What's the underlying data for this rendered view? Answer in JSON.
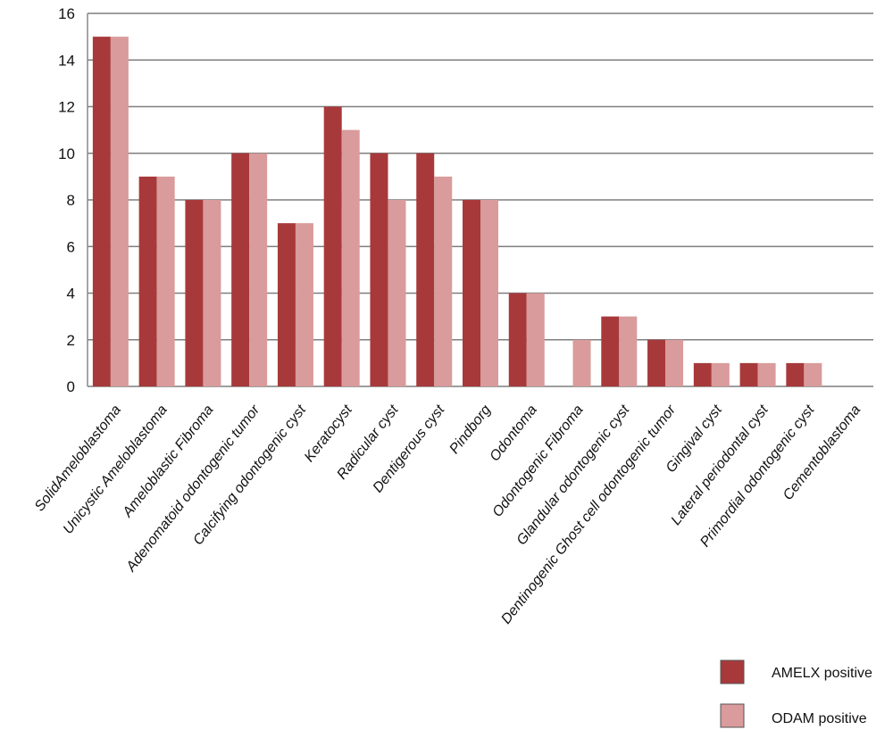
{
  "chart_data": {
    "type": "bar",
    "categories": [
      "SolidAmeloblastoma",
      "Unicystic Ameloblastoma",
      "Ameloblastic Fibroma",
      "Adenomatoid odontogenic tumor",
      "Calcifying odontogenic cyst",
      "Keratocyst",
      "Radicular cyst",
      "Dentigerous cyst",
      "Pindborg",
      "Odontoma",
      "Odontogenic Fibroma",
      "Glandular odontogenic cyst",
      "Dentinogenic Ghost cell odontogenic tumor",
      "Gingival cyst",
      "Lateral periodontal cyst",
      "Primordial odontogenic cyst",
      "Cementoblastoma"
    ],
    "series": [
      {
        "name": "AMELX positive",
        "color": "#a8393b",
        "values": [
          15,
          9,
          8,
          10,
          7,
          12,
          10,
          10,
          8,
          4,
          0,
          3,
          2,
          1,
          1,
          1,
          0
        ]
      },
      {
        "name": "ODAM positive",
        "color": "#d99b9b",
        "values": [
          15,
          9,
          8,
          10,
          7,
          11,
          8,
          9,
          8,
          4,
          2,
          3,
          2,
          1,
          1,
          1,
          0
        ]
      }
    ],
    "yticks": [
      "0",
      "2",
      "4",
      "6",
      "8",
      "10",
      "12",
      "14",
      "16"
    ],
    "ylim": [
      0,
      16
    ],
    "grid": true,
    "legend": "bottom-right"
  }
}
